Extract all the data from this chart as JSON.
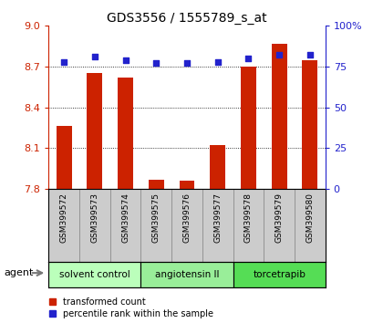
{
  "title": "GDS3556 / 1555789_s_at",
  "samples": [
    "GSM399572",
    "GSM399573",
    "GSM399574",
    "GSM399575",
    "GSM399576",
    "GSM399577",
    "GSM399578",
    "GSM399579",
    "GSM399580"
  ],
  "transformed_counts": [
    8.26,
    8.65,
    8.62,
    7.87,
    7.86,
    8.12,
    8.7,
    8.87,
    8.75
  ],
  "percentile_ranks": [
    78,
    81,
    79,
    77,
    77,
    78,
    80,
    82,
    82
  ],
  "ylim_left": [
    7.8,
    9.0
  ],
  "yticks_left": [
    7.8,
    8.1,
    8.4,
    8.7,
    9.0
  ],
  "yticks_right": [
    0,
    25,
    50,
    75,
    100
  ],
  "bar_color": "#cc2200",
  "dot_color": "#2222cc",
  "bar_bottom": 7.8,
  "groups": [
    {
      "label": "solvent control",
      "indices": [
        0,
        1,
        2
      ],
      "color": "#bbffbb"
    },
    {
      "label": "angiotensin II",
      "indices": [
        3,
        4,
        5
      ],
      "color": "#99ee99"
    },
    {
      "label": "torcetrapib",
      "indices": [
        6,
        7,
        8
      ],
      "color": "#55dd55"
    }
  ],
  "legend_items": [
    {
      "label": "transformed count",
      "color": "#cc2200"
    },
    {
      "label": "percentile rank within the sample",
      "color": "#2222cc"
    }
  ],
  "agent_label": "agent",
  "sample_bg": "#cccccc",
  "left_tick_color": "#cc2200",
  "right_tick_color": "#2222cc",
  "grid_yticks": [
    8.1,
    8.4,
    8.7
  ]
}
